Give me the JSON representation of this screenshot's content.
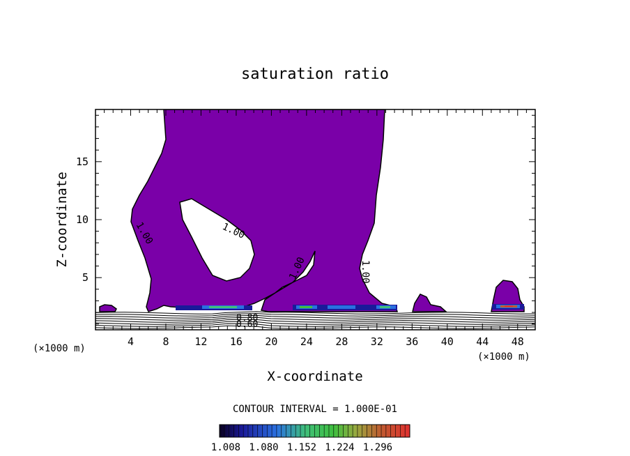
{
  "chart_data": {
    "type": "contour",
    "title": "saturation ratio",
    "xlabel": "X-coordinate",
    "ylabel": "Z-coordinate",
    "x_unit_left": "(×1000 m)",
    "x_unit_right": "(×1000 m)",
    "xlim": [
      0,
      50
    ],
    "ylim": [
      0.5,
      19.5
    ],
    "x_ticks": [
      4,
      8,
      12,
      16,
      20,
      24,
      28,
      32,
      36,
      40,
      44,
      48
    ],
    "y_ticks": [
      5,
      10,
      15
    ],
    "contour_labels": [
      "1.00",
      "1.00",
      "1.00",
      "1.00",
      "0.80",
      "0.60"
    ],
    "contour_interval_text": "CONTOUR INTERVAL = 1.000E-01",
    "colorbar": {
      "ticks": [
        "1.008",
        "1.080",
        "1.152",
        "1.224",
        "1.296"
      ],
      "colors": [
        "#0a0020",
        "#1a1a9a",
        "#2a70e0",
        "#3fbf7a",
        "#3fbf3f",
        "#9aa840",
        "#c05a30",
        "#e03030"
      ]
    },
    "fill_color": "#7a00a8"
  }
}
